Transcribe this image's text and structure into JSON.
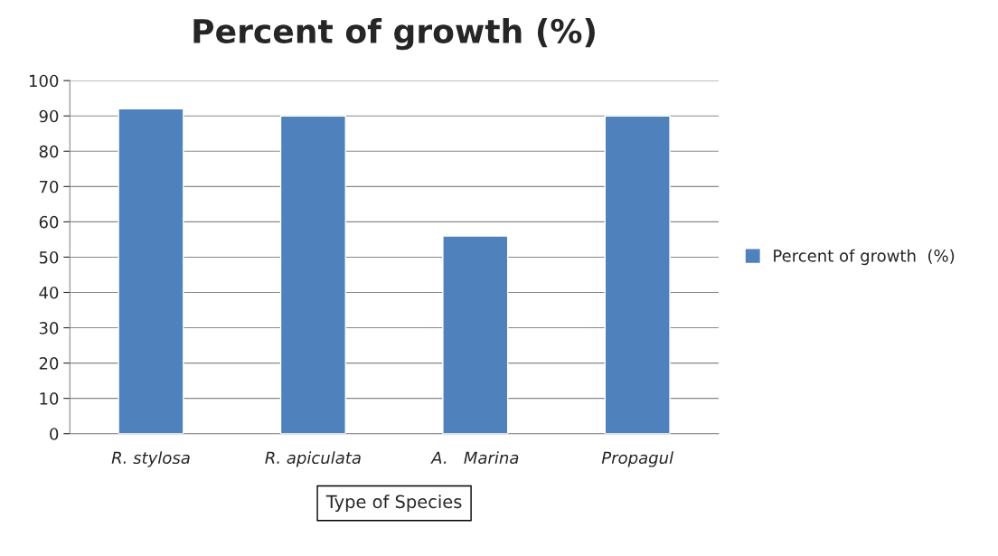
{
  "chart_data": {
    "type": "bar",
    "title": "Percent of growth (%)",
    "xlabel": "Type of Species",
    "categories": [
      "R. stylosa",
      "R. apiculata",
      "A.   Marina",
      "Propagul"
    ],
    "series": [
      {
        "name": "Percent of growth  (%)",
        "color": "#4f81bd",
        "values": [
          92,
          90,
          56,
          90
        ]
      }
    ],
    "ylim": [
      0,
      100
    ],
    "yticks": [
      0,
      10,
      20,
      30,
      40,
      50,
      60,
      70,
      80,
      90,
      100
    ],
    "grid": "y",
    "legend": "right"
  }
}
